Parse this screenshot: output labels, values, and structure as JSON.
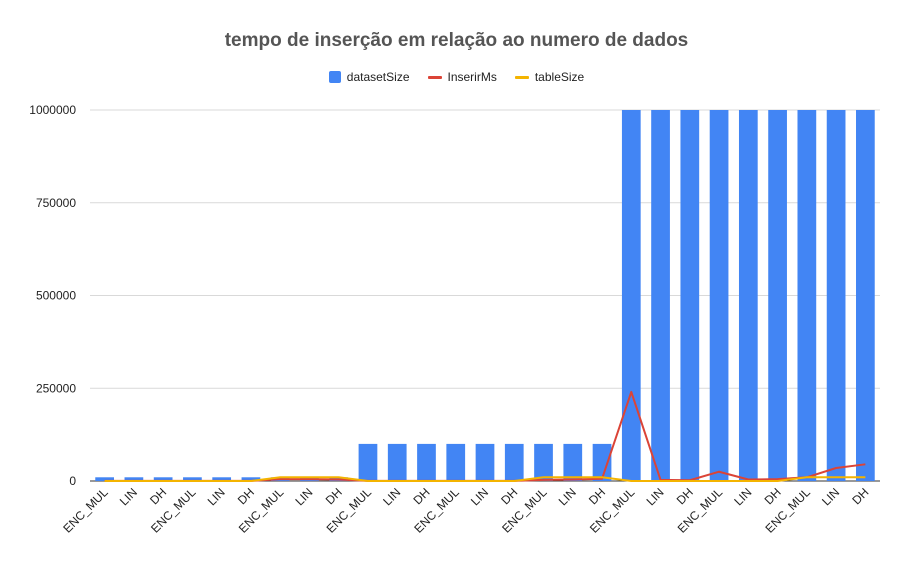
{
  "chart_data": {
    "type": "bar",
    "title": "tempo de inserção em relação ao numero de dados",
    "categories": [
      "ENC_MUL",
      "LIN",
      "DH",
      "ENC_MUL",
      "LIN",
      "DH",
      "ENC_MUL",
      "LIN",
      "DH",
      "ENC_MUL",
      "LIN",
      "DH",
      "ENC_MUL",
      "LIN",
      "DH",
      "ENC_MUL",
      "LIN",
      "DH",
      "ENC_MUL",
      "LIN",
      "DH",
      "ENC_MUL",
      "LIN",
      "DH",
      "ENC_MUL",
      "LIN",
      "DH"
    ],
    "series": [
      {
        "name": "datasetSize",
        "kind": "bar",
        "color": "#4285F4",
        "values": [
          10000,
          10000,
          10000,
          10000,
          10000,
          10000,
          10000,
          10000,
          10000,
          100000,
          100000,
          100000,
          100000,
          100000,
          100000,
          100000,
          100000,
          100000,
          1000000,
          1000000,
          1000000,
          1000000,
          1000000,
          1000000,
          1000000,
          1000000,
          1000000
        ]
      },
      {
        "name": "InserirMs",
        "kind": "line",
        "color": "#DB4437",
        "values": [
          300,
          200,
          300,
          300,
          200,
          300,
          5000,
          5000,
          4000,
          300,
          200,
          300,
          300,
          200,
          300,
          3000,
          4000,
          6000,
          240000,
          3000,
          2000,
          25000,
          4000,
          5000,
          10000,
          35000,
          45000
        ]
      },
      {
        "name": "tableSize",
        "kind": "line",
        "color": "#F4B400",
        "values": [
          0,
          0,
          0,
          0,
          0,
          0,
          10000,
          10000,
          10000,
          0,
          0,
          0,
          0,
          0,
          0,
          10000,
          10000,
          10000,
          0,
          0,
          0,
          0,
          0,
          0,
          10000,
          10000,
          10000
        ]
      }
    ],
    "yticks": [
      0,
      250000,
      500000,
      750000,
      1000000
    ],
    "ylim": [
      0,
      1000000
    ],
    "grid": true,
    "legend_position": "top"
  }
}
